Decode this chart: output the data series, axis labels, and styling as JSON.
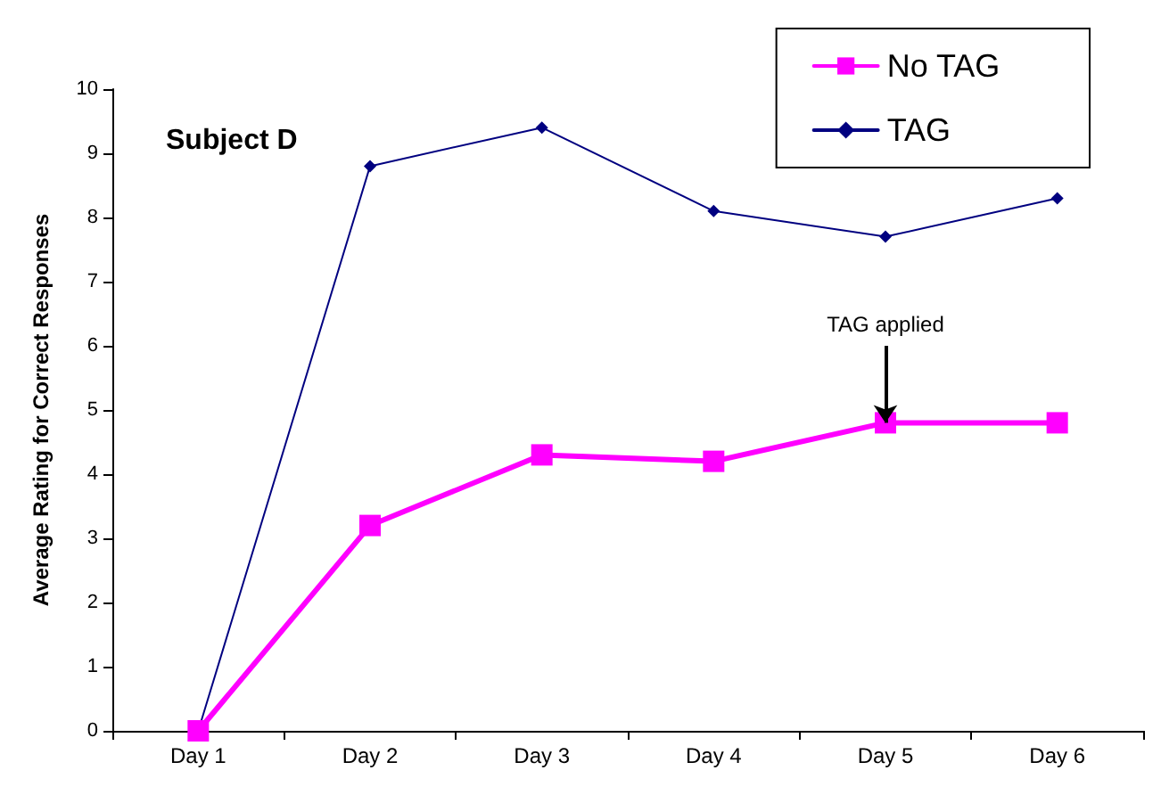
{
  "chart_data": {
    "type": "line",
    "title": "Subject D",
    "ylabel": "Average Rating for Correct Responses",
    "categories": [
      "Day 1",
      "Day 2",
      "Day 3",
      "Day 4",
      "Day 5",
      "Day 6"
    ],
    "series": [
      {
        "name": "No TAG",
        "color": "#ff00ff",
        "marker": "square",
        "values": [
          0,
          3.2,
          4.3,
          4.2,
          4.8,
          4.8
        ]
      },
      {
        "name": "TAG",
        "color": "#000080",
        "marker": "diamond",
        "values": [
          0,
          8.8,
          9.4,
          8.1,
          7.7,
          8.3
        ]
      }
    ],
    "ylim": [
      0,
      10
    ],
    "yticks": [
      0,
      1,
      2,
      3,
      4,
      5,
      6,
      7,
      8,
      9,
      10
    ],
    "grid": false,
    "legend": "top right",
    "line_style": "solid",
    "annotations": [
      {
        "text": "TAG applied",
        "x": "Day 5",
        "y": 4.8
      }
    ]
  }
}
